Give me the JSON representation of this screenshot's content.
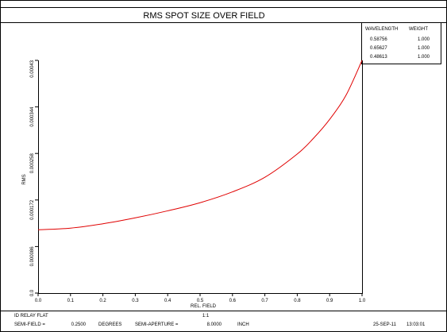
{
  "chart_data": {
    "type": "line",
    "title": "RMS SPOT SIZE OVER FIELD",
    "xlabel": "REL. FIELD",
    "ylabel": "RMS",
    "xlim": [
      0,
      1
    ],
    "ylim": [
      0,
      0.00043
    ],
    "x_ticks": [
      "0.0",
      "0.1",
      "0.2",
      "0.3",
      "0.4",
      "0.5",
      "0.6",
      "0.7",
      "0.8",
      "0.9",
      "1.0"
    ],
    "y_ticks": [
      {
        "value": 0,
        "label": "0.0"
      },
      {
        "value": 8.6e-05,
        "label": "0.000086"
      },
      {
        "value": 0.000172,
        "label": "0.000172"
      },
      {
        "value": 0.000258,
        "label": "0.000258"
      },
      {
        "value": 0.000344,
        "label": "0.000344"
      },
      {
        "value": 0.00043,
        "label": "0.00043"
      }
    ],
    "series": [
      {
        "color": "#e00000",
        "x": [
          0,
          0.1,
          0.2,
          0.3,
          0.4,
          0.5,
          0.6,
          0.7,
          0.8,
          0.85,
          0.9,
          0.95,
          1.0
        ],
        "y": [
          0.000117,
          0.00012,
          0.000128,
          0.000139,
          0.000152,
          0.000167,
          0.000187,
          0.000214,
          0.000257,
          0.000286,
          0.000321,
          0.000365,
          0.000435
        ]
      }
    ],
    "legend": {
      "headers": [
        "WAVELENGTH",
        "WEIGHT"
      ],
      "rows": [
        {
          "wavelength": "0.58756",
          "weight": "1.000"
        },
        {
          "wavelength": "0.65627",
          "weight": "1.000"
        },
        {
          "wavelength": "0.48613",
          "weight": "1.000"
        }
      ]
    }
  },
  "footer": {
    "name": "ID RELAY FLAT",
    "scale": "1:1",
    "semi_field_label": "SEMI-FIELD =",
    "semi_field_value": "0.2500",
    "semi_field_unit": "DEGREES",
    "semi_aperture_label": "SEMI-APERTURE =",
    "semi_aperture_value": "8.0000",
    "semi_aperture_unit": "INCH",
    "date": "25-SEP-11",
    "time": "13:03:01"
  },
  "colors": {
    "curve": "#e00000",
    "frame": "#000000"
  }
}
